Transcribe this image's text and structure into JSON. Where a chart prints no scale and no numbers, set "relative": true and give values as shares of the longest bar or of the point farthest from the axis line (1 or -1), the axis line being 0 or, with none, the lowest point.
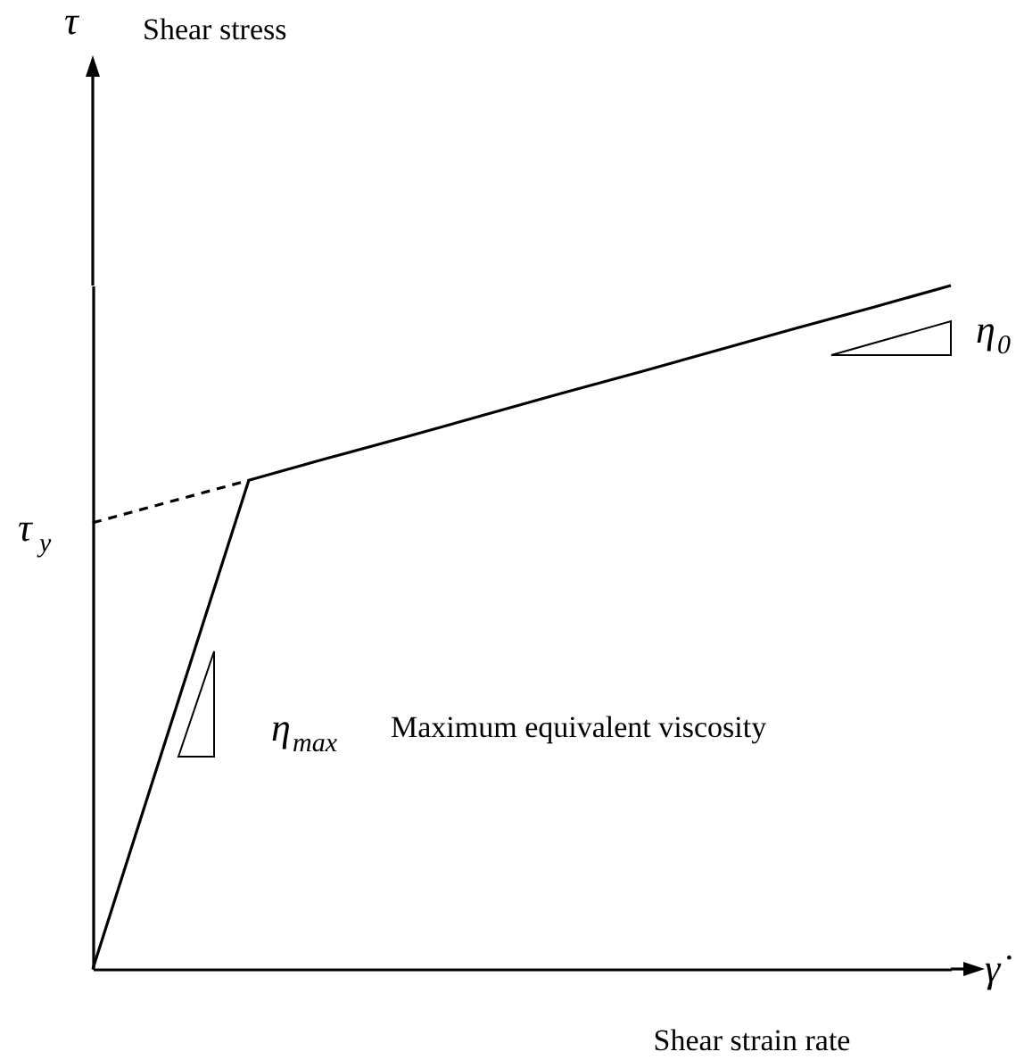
{
  "chart_data": {
    "type": "line",
    "relative": true,
    "xlabel": "Shear strain rate",
    "categories": [
      null,
      null,
      null,
      null,
      null,
      null,
      null,
      null,
      null,
      null,
      null,
      null
    ],
    "series": [
      {
        "color": "#000000",
        "values": [
          0,
          0.358,
          0.715,
          0.747,
          0.778,
          0.81,
          0.842,
          0.873,
          0.905,
          0.937,
          0.968,
          1
        ]
      },
      {
        "color": "#000000",
        "values": [
          0.653,
          0.684,
          0.715,
          null,
          null,
          null,
          null,
          null,
          null,
          null,
          null,
          null
        ],
        "line_style": "dashed"
      }
    ],
    "annotations": [
      "τ",
      "Shear stress",
      "γ̇",
      "τ$_{y}$",
      "η$_{0}$",
      "η$_{max}$",
      "Maximum equivalent viscosity"
    ]
  }
}
